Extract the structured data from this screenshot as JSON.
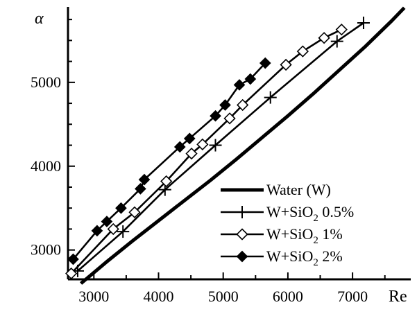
{
  "chart_data": {
    "type": "scatter",
    "title": "",
    "xlabel": "Re",
    "ylabel": "α",
    "xlim": [
      2600,
      7900
    ],
    "ylim": [
      2650,
      5900
    ],
    "x_ticks": [
      3000,
      4000,
      5000,
      6000,
      7000
    ],
    "y_ticks": [
      3000,
      4000,
      5000
    ],
    "grid": false,
    "legend_placement": "bottom-right",
    "series": [
      {
        "name": "Water (W)",
        "style": "line",
        "color": "#000000",
        "x": [
          2800,
          3200,
          3600,
          4000,
          4400,
          4800,
          5200,
          5600,
          6000,
          6400,
          6800,
          7200,
          7600,
          7800
        ],
        "y": [
          2600,
          2860,
          3110,
          3350,
          3590,
          3830,
          4080,
          4340,
          4600,
          4870,
          5150,
          5430,
          5730,
          5890
        ]
      },
      {
        "name": "W+SiO",
        "name_sub": "2",
        "name_suffix": " 0.5%",
        "style": "line-marker",
        "marker": "plus",
        "color": "#000000",
        "x": [
          2750,
          3450,
          4100,
          4880,
          5730,
          6760,
          7170
        ],
        "y": [
          2750,
          3220,
          3720,
          4250,
          4820,
          5490,
          5710
        ]
      },
      {
        "name": "W+SiO",
        "name_sub": "2",
        "name_suffix": " 1%",
        "style": "line-marker",
        "marker": "diamond-open",
        "color": "#000000",
        "x": [
          2650,
          3300,
          3630,
          4120,
          4510,
          4680,
          5100,
          5300,
          5970,
          6230,
          6560,
          6830
        ],
        "y": [
          2720,
          3250,
          3450,
          3820,
          4150,
          4260,
          4570,
          4730,
          5210,
          5370,
          5530,
          5630
        ]
      },
      {
        "name": "W+SiO",
        "name_sub": "2",
        "name_suffix": " 2%",
        "style": "line-marker",
        "marker": "diamond-filled",
        "color": "#000000",
        "x": [
          2680,
          3050,
          3200,
          3420,
          3720,
          3780,
          4330,
          4480,
          4880,
          5030,
          5250,
          5420,
          5650
        ],
        "y": [
          2890,
          3230,
          3340,
          3500,
          3730,
          3840,
          4230,
          4330,
          4600,
          4730,
          4970,
          5040,
          5230
        ]
      }
    ]
  }
}
